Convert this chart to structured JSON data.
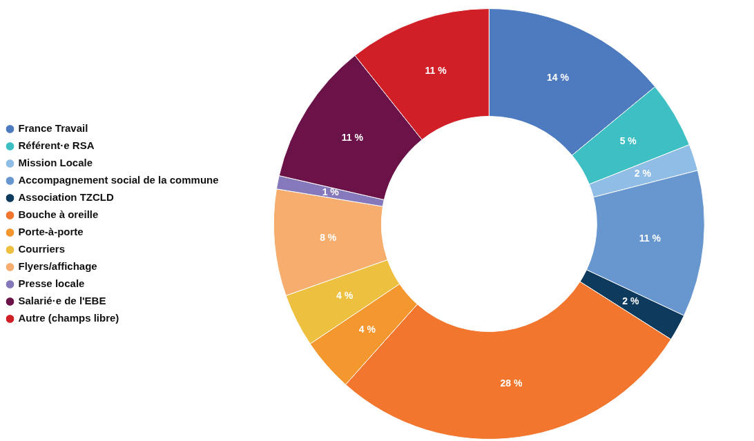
{
  "chart_data": {
    "type": "donut",
    "categories": [
      "France Travail",
      "Référent·e RSA",
      "Mission Locale",
      "Accompagnement social de la commune",
      "Association TZCLD",
      "Bouche à oreille",
      "Porte-à-porte",
      "Courriers",
      "Flyers/affichage",
      "Presse locale",
      "Salarié·e de l'EBE",
      "Autre (champs libre)"
    ],
    "values": [
      14,
      5,
      2,
      11,
      2,
      27.6,
      4,
      4,
      8,
      1,
      10.7,
      10.7
    ],
    "value_labels": [
      "14 %",
      "5 %",
      "2 %",
      "11 %",
      "2 %",
      "28 %",
      "4 %",
      "4 %",
      "8 %",
      "1 %",
      "11 %",
      "11 %"
    ],
    "colors": [
      "#4e7bc0",
      "#3dbfc4",
      "#8fbde5",
      "#6897cf",
      "#0e3a5e",
      "#f2762e",
      "#f4972f",
      "#eec040",
      "#f6ad6e",
      "#8679bb",
      "#6b1249",
      "#d11f27"
    ],
    "legend": "left"
  }
}
